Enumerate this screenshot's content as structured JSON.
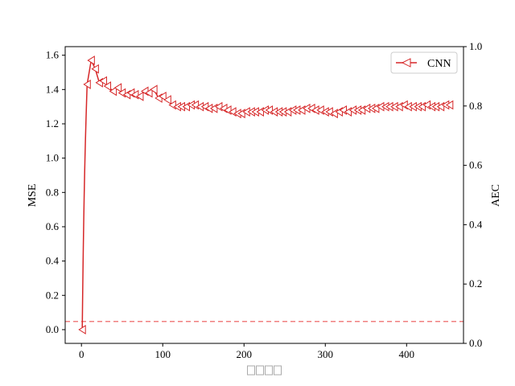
{
  "chart_data": {
    "type": "line",
    "xlabel": "□□□□",
    "ylabel": "MSE",
    "y2label": "AEC",
    "xlim": [
      -20,
      470
    ],
    "ylim": [
      -0.08,
      1.65
    ],
    "y2lim": [
      0,
      1
    ],
    "xticks": [
      0,
      100,
      200,
      300,
      400
    ],
    "yticks": [
      0.0,
      0.2,
      0.4,
      0.6,
      0.8,
      1.0,
      1.2,
      1.4,
      1.6
    ],
    "y2ticks": [
      0.0,
      0.2,
      0.4,
      0.6,
      0.8,
      1.0
    ],
    "ytick_labels": [
      "0.0",
      "0.2",
      "0.4",
      "0.6",
      "0.8",
      "1.0",
      "1.2",
      "1.4",
      "1.6"
    ],
    "y2tick_labels": [
      "0.0",
      "0.2",
      "0.4",
      "0.6",
      "0.8",
      "1.0"
    ],
    "xtick_labels": [
      "0",
      "100",
      "200",
      "300",
      "400"
    ],
    "legend": {
      "position": "top-right",
      "entries": [
        "CNN"
      ]
    },
    "colors": {
      "series": "#d62728",
      "reference_line": "#f08080"
    },
    "reference_line": {
      "axis": "y2",
      "value": 0.074,
      "style": "dashed"
    },
    "series": [
      {
        "name": "CNN",
        "marker": "triangle-left-open",
        "x": [
          1,
          7,
          12,
          17,
          22,
          27,
          32,
          39,
          45,
          50,
          56,
          61,
          66,
          72,
          78,
          83,
          89,
          95,
          100,
          106,
          112,
          118,
          123,
          129,
          135,
          140,
          146,
          152,
          157,
          163,
          169,
          175,
          180,
          186,
          192,
          197,
          203,
          209,
          214,
          220,
          226,
          231,
          237,
          243,
          248,
          254,
          260,
          265,
          271,
          277,
          283,
          288,
          294,
          300,
          305,
          311,
          317,
          322,
          328,
          334,
          340,
          345,
          351,
          357,
          362,
          368,
          374,
          379,
          385,
          391,
          397,
          402,
          408,
          414,
          419,
          425,
          431,
          436,
          442,
          448,
          453
        ],
        "y": [
          0.0,
          1.43,
          1.57,
          1.52,
          1.44,
          1.45,
          1.42,
          1.39,
          1.41,
          1.38,
          1.37,
          1.38,
          1.37,
          1.36,
          1.39,
          1.38,
          1.4,
          1.35,
          1.36,
          1.34,
          1.31,
          1.3,
          1.3,
          1.3,
          1.31,
          1.31,
          1.3,
          1.3,
          1.29,
          1.29,
          1.3,
          1.29,
          1.28,
          1.27,
          1.26,
          1.26,
          1.27,
          1.27,
          1.27,
          1.27,
          1.28,
          1.28,
          1.27,
          1.27,
          1.27,
          1.27,
          1.28,
          1.28,
          1.28,
          1.29,
          1.29,
          1.28,
          1.28,
          1.27,
          1.27,
          1.26,
          1.27,
          1.28,
          1.27,
          1.28,
          1.28,
          1.28,
          1.29,
          1.29,
          1.29,
          1.3,
          1.3,
          1.3,
          1.3,
          1.3,
          1.31,
          1.3,
          1.3,
          1.3,
          1.3,
          1.31,
          1.3,
          1.3,
          1.3,
          1.31,
          1.31
        ]
      }
    ]
  }
}
